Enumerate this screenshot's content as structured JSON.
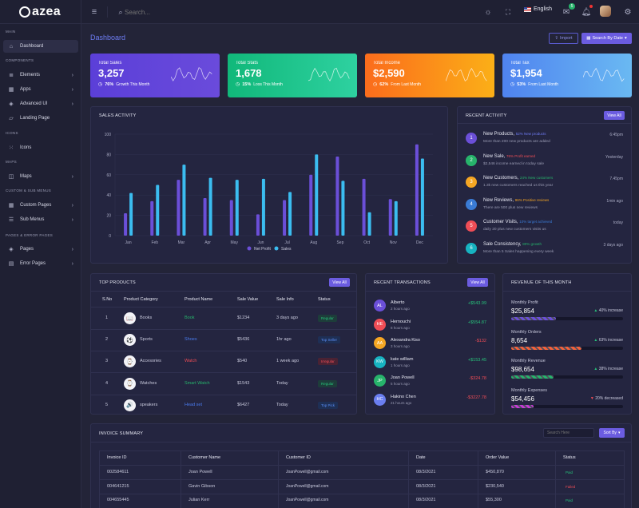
{
  "app": {
    "name": "azea"
  },
  "header": {
    "search_placeholder": "Search...",
    "language": "English",
    "notif_badge": "5"
  },
  "sidebar": {
    "sections": [
      "MAIN",
      "COMPONENTS",
      "ICONS",
      "MAPS",
      "CUSTOM & SUB MENUS",
      "PAGES & ERROR PAGES"
    ],
    "items": [
      {
        "label": "Dashboard",
        "icon": "house-icon"
      },
      {
        "label": "Elements",
        "icon": "database-icon"
      },
      {
        "label": "Apps",
        "icon": "grid-icon"
      },
      {
        "label": "Advanced UI",
        "icon": "layers-icon"
      },
      {
        "label": "Landing Page",
        "icon": "bookmark-icon"
      },
      {
        "label": "Icons",
        "icon": "dots-icon"
      },
      {
        "label": "Maps",
        "icon": "map-icon"
      },
      {
        "label": "Custom Pages",
        "icon": "grid-icon"
      },
      {
        "label": "Sub Menus",
        "icon": "menu-icon"
      },
      {
        "label": "Pages",
        "icon": "layers-icon"
      },
      {
        "label": "Error Pages",
        "icon": "file-icon"
      }
    ]
  },
  "page": {
    "title": "Dashboard",
    "import_label": "Import",
    "search_by_date": "Search By Date"
  },
  "kpis": [
    {
      "label": "Total Sales",
      "value": "3,257",
      "pct": "76%",
      "note": "Growth This Month",
      "from": "#5b3fd8",
      "to": "#6a4bdb"
    },
    {
      "label": "Total Stats",
      "value": "1,678",
      "pct": "15%",
      "note": "Loss This Month",
      "from": "#11b87a",
      "to": "#2ed1a0"
    },
    {
      "label": "Total Income",
      "value": "$2,590",
      "pct": "62%",
      "note": "From Last Month",
      "from": "#fb6c1c",
      "to": "#fbaf17"
    },
    {
      "label": "Total Tax",
      "value": "$1,954",
      "pct": "53%",
      "note": "From Last Month",
      "from": "#4f83f0",
      "to": "#6ab9f2"
    }
  ],
  "sales": {
    "title": "SALES ACTIVITY"
  },
  "chart_data": {
    "type": "bar",
    "title": "SALES ACTIVITY",
    "categories": [
      "Jan",
      "Feb",
      "Mar",
      "Apr",
      "May",
      "Jun",
      "Jul",
      "Aug",
      "Sep",
      "Oct",
      "Nov",
      "Dec"
    ],
    "series": [
      {
        "name": "Net Profit",
        "values": [
          22,
          34,
          55,
          37,
          35,
          21,
          35,
          60,
          78,
          56,
          36,
          90
        ],
        "color": "#6b4fd8"
      },
      {
        "name": "Sales",
        "values": [
          42,
          50,
          70,
          57,
          55,
          56,
          43,
          80,
          54,
          23,
          34,
          76
        ],
        "color": "#3bbdf0"
      }
    ],
    "yticks": [
      "0",
      "20",
      "40",
      "60",
      "80",
      "100"
    ],
    "ylim": [
      0,
      100
    ],
    "legend": "bottom"
  },
  "activity": {
    "title": "RECENT ACTIVITY",
    "view_all": "View All",
    "items": [
      {
        "n": "1",
        "color": "#6b4fd8",
        "title": "New Products,",
        "tag": "52% New products",
        "tagcolor": "#6f7cf5",
        "desc": "More than 200 new products are added",
        "time": "6:45pm"
      },
      {
        "n": "2",
        "color": "#27b36b",
        "title": "New Sale,",
        "tag": "76% Profit earned",
        "tagcolor": "#ef4d56",
        "desc": "$2,546 income earned in today sale",
        "time": "Yesterday"
      },
      {
        "n": "3",
        "color": "#f5a623",
        "title": "New Customers,",
        "tag": "24% New customers",
        "tagcolor": "#27b36b",
        "desc": "1.3k new customers reached us this year",
        "time": "7.45pm"
      },
      {
        "n": "4",
        "color": "#3a7bd5",
        "title": "New Reviews,",
        "tag": "96% Positive reviews",
        "tagcolor": "#f5a623",
        "desc": "There are 500 plus new reviews",
        "time": "1min ago"
      },
      {
        "n": "5",
        "color": "#ef4d56",
        "title": "Customer Visits,",
        "tag": "10% target achieved",
        "tagcolor": "#3a7bd5",
        "desc": "daily 20 plus new customers visits us",
        "time": "today"
      },
      {
        "n": "6",
        "color": "#17b3c1",
        "title": "Sale Consistency,",
        "tag": "80% growth",
        "tagcolor": "#27b36b",
        "desc": "More than 5 Sales happening every week",
        "time": "3 days ago"
      }
    ]
  },
  "products": {
    "title": "TOP PRODUCTS",
    "view_all": "View All",
    "columns": [
      "S.No",
      "Product Category",
      "Product Name",
      "Sale Value",
      "Sale Info",
      "Status"
    ],
    "rows": [
      {
        "no": "1",
        "cat": "Books",
        "name": "Book",
        "namecolor": "#27b36b",
        "value": "$1234",
        "info": "3 days ago",
        "status": "Regular",
        "sbg": "#1d3d3a",
        "sfg": "#27c27a",
        "icon": "📖"
      },
      {
        "no": "2",
        "cat": "Sports",
        "name": "Shoes",
        "namecolor": "#4a7cf0",
        "value": "$5436",
        "info": "1hr ago",
        "status": "Top Seller",
        "sbg": "#1e2f55",
        "sfg": "#5b8df5",
        "icon": "⚽"
      },
      {
        "no": "3",
        "cat": "Accesories",
        "name": "Watch",
        "namecolor": "#ef4d56",
        "value": "$540",
        "info": "1 week ago",
        "status": "Irregular",
        "sbg": "#4a2233",
        "sfg": "#ef4d56",
        "icon": "⌚"
      },
      {
        "no": "4",
        "cat": "Watches",
        "name": "Smart Watch",
        "namecolor": "#27b36b",
        "value": "$1543",
        "info": "Today",
        "status": "Regular",
        "sbg": "#1d3d3a",
        "sfg": "#27c27a",
        "icon": "⌚"
      },
      {
        "no": "5",
        "cat": "speakers",
        "name": "Head set",
        "namecolor": "#4a7cf0",
        "value": "$6427",
        "info": "Today",
        "status": "Top Pick",
        "sbg": "#1e2f55",
        "sfg": "#5b8df5",
        "icon": "🔊"
      }
    ]
  },
  "transactions": {
    "title": "RECENT TRANSACTIONS",
    "view_all": "View All",
    "items": [
      {
        "ini": "AL",
        "color": "#6b4fd8",
        "name": "Alberto",
        "time": "2 hours ago",
        "amt": "+$543.99",
        "amtcolor": "#27c27a"
      },
      {
        "ini": "HE",
        "color": "#ef4d56",
        "name": "Hernouchi",
        "time": "8 hours ago",
        "amt": "+$554.87",
        "amtcolor": "#27c27a"
      },
      {
        "ini": "AA",
        "color": "#f5a623",
        "name": "Alexandra Kiso",
        "time": "3 hours ago",
        "amt": "-$132",
        "amtcolor": "#ef4d56"
      },
      {
        "ini": "KW",
        "color": "#17b3c1",
        "name": "kate william",
        "time": "1 hours ago",
        "amt": "+$153.45",
        "amtcolor": "#27c27a"
      },
      {
        "ini": "JP",
        "color": "#27b36b",
        "name": "Joan Powell",
        "time": "5 hours ago",
        "amt": "-$324.78",
        "amtcolor": "#ef4d56"
      },
      {
        "ini": "HC",
        "color": "#6a7ef0",
        "name": "Hakino Chen",
        "time": "21 hours ago",
        "amt": "-$3227.78",
        "amtcolor": "#ef4d56"
      }
    ]
  },
  "revenue": {
    "title": "REVENUE OF THIS MONTH",
    "items": [
      {
        "label": "Monthly Profit",
        "value": "$25,854",
        "change": "40% increase",
        "arrow": "▲",
        "arrowcolor": "#27c27a",
        "pct": 40,
        "bar": "#6b4fd8"
      },
      {
        "label": "Monthly Orders",
        "value": "8,654",
        "change": "63% increase",
        "arrow": "▲",
        "arrowcolor": "#27c27a",
        "pct": 63,
        "bar": "#f4613a"
      },
      {
        "label": "Monthly Revenue",
        "value": "$98,654",
        "change": "38% increase",
        "arrow": "▲",
        "arrowcolor": "#27c27a",
        "pct": 38,
        "bar": "#27b36b"
      },
      {
        "label": "Monthly Expenses",
        "value": "$54,456",
        "change": "20% decreased",
        "arrow": "▼",
        "arrowcolor": "#ef4d56",
        "pct": 20,
        "bar": "#c83ad8"
      }
    ]
  },
  "invoice": {
    "title": "INVOICE SUMMARY",
    "search_placeholder": "Search Here",
    "sort_by": "Sort By",
    "columns": [
      "Invoice ID",
      "Customer Name",
      "Customer ID",
      "Date",
      "Order Value",
      "Status"
    ],
    "rows": [
      {
        "id": "002584611",
        "name": "Joan Powell",
        "cid": "JoanPowell@gmail.com",
        "date": "08/3/2021",
        "value": "$450,870",
        "status": "Paid",
        "scolor": "#27c27a"
      },
      {
        "id": "004641215",
        "name": "Gavin Gibson",
        "cid": "JoanPowell@gmail.com",
        "date": "08/3/2021",
        "value": "$230,540",
        "status": "Failed",
        "scolor": "#ef4d56"
      },
      {
        "id": "004655445",
        "name": "Julian Kerr",
        "cid": "JoanPowell@gmail.com",
        "date": "08/3/2021",
        "value": "$55,300",
        "status": "Paid",
        "scolor": "#27c27a"
      }
    ]
  }
}
